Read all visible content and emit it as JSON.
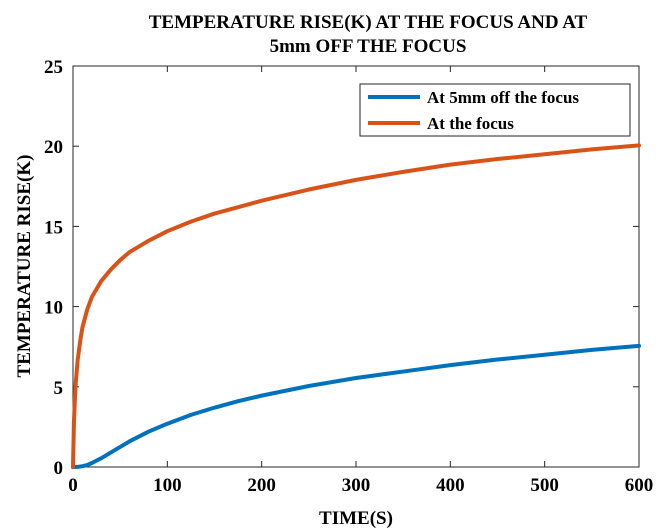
{
  "chart_data": {
    "type": "line",
    "title_lines": [
      "TEMPERATURE RISE(K) AT THE FOCUS AND AT",
      "5mm OFF THE FOCUS"
    ],
    "xlabel": "TIME(S)",
    "ylabel": "TEMPERATURE RISE(K)",
    "xlim": [
      0,
      600
    ],
    "ylim": [
      0,
      25
    ],
    "xticks": [
      0,
      100,
      200,
      300,
      400,
      500,
      600
    ],
    "yticks": [
      0,
      5,
      10,
      15,
      20,
      25
    ],
    "grid": false,
    "legend_position": "top-right",
    "series": [
      {
        "name": "At 5mm off the focus",
        "color": "#0072BD",
        "x": [
          0,
          5,
          10,
          15,
          20,
          30,
          40,
          50,
          60,
          80,
          100,
          125,
          150,
          175,
          200,
          250,
          300,
          350,
          400,
          450,
          500,
          550,
          600
        ],
        "y": [
          0,
          0.01,
          0.05,
          0.12,
          0.25,
          0.55,
          0.9,
          1.25,
          1.6,
          2.2,
          2.7,
          3.25,
          3.7,
          4.1,
          4.45,
          5.05,
          5.55,
          5.95,
          6.35,
          6.7,
          7.0,
          7.3,
          7.55
        ]
      },
      {
        "name": "At the focus",
        "color": "#D95319",
        "x": [
          0,
          1,
          2,
          3,
          5,
          8,
          10,
          15,
          20,
          30,
          40,
          50,
          60,
          80,
          100,
          125,
          150,
          175,
          200,
          250,
          300,
          350,
          400,
          450,
          500,
          550,
          600
        ],
        "y": [
          0,
          2.8,
          4.2,
          5.3,
          6.7,
          8.0,
          8.7,
          9.8,
          10.6,
          11.6,
          12.3,
          12.9,
          13.4,
          14.1,
          14.7,
          15.3,
          15.8,
          16.2,
          16.6,
          17.3,
          17.9,
          18.4,
          18.85,
          19.2,
          19.5,
          19.8,
          20.05
        ]
      }
    ]
  }
}
